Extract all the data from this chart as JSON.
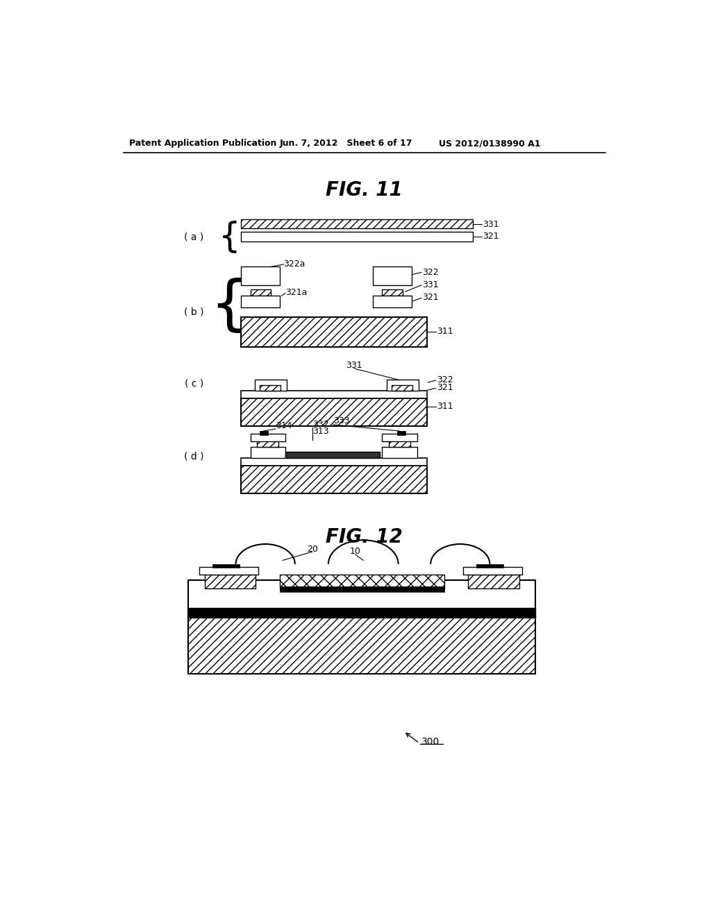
{
  "title": "FIG. 11",
  "title2": "FIG. 12",
  "header_left": "Patent Application Publication",
  "header_mid": "Jun. 7, 2012   Sheet 6 of 17",
  "header_right": "US 2012/0138990 A1",
  "bg_color": "#ffffff"
}
